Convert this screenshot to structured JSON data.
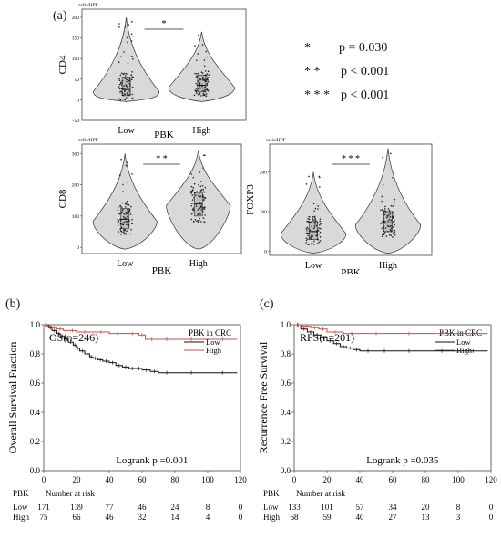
{
  "panel_a": {
    "letter": "(a)",
    "significance": [
      {
        "stars": "*",
        "text": "p = 0.030"
      },
      {
        "stars": "* *",
        "text": "p < 0.001"
      },
      {
        "stars": "* * *",
        "text": "p < 0.001"
      }
    ]
  },
  "panel_b": {
    "letter": "(b)"
  },
  "panel_c": {
    "letter": "(c)"
  },
  "chart_data": [
    {
      "type": "violin",
      "id": "cd4",
      "ylabel": "CD4",
      "unit_label": "cells/HPF",
      "xlabel": "PBK",
      "categories": [
        "Low",
        "High"
      ],
      "ylim": [
        -50,
        220
      ],
      "yticks": [
        "0",
        "50",
        "100",
        "150",
        "200"
      ],
      "tick_values": [
        0,
        50,
        100,
        150,
        200
      ],
      "extra_tick": {
        "label": "-50",
        "value": -50
      },
      "significance": "*",
      "box": [
        {
          "q1": 10,
          "median": 25,
          "q3": 55
        },
        {
          "q1": 20,
          "median": 35,
          "q3": 60
        }
      ],
      "max": [
        200,
        165
      ]
    },
    {
      "type": "violin",
      "id": "cd8",
      "ylabel": "CD8",
      "unit_label": "cells/HPF",
      "xlabel": "PBK",
      "categories": [
        "Low",
        "High"
      ],
      "ylim": [
        -20,
        330
      ],
      "yticks": [
        "0",
        "100",
        "200",
        "300"
      ],
      "tick_values": [
        0,
        100,
        200,
        300
      ],
      "significance": "* *",
      "box": [
        {
          "q1": 60,
          "median": 90,
          "q3": 125
        },
        {
          "q1": 100,
          "median": 140,
          "q3": 175
        }
      ],
      "max": [
        300,
        310
      ]
    },
    {
      "type": "violin",
      "id": "foxp3",
      "ylabel": "FOXP3",
      "unit_label": "cells/HPF",
      "xlabel": "PBK",
      "categories": [
        "Low",
        "High"
      ],
      "ylim": [
        -10,
        270
      ],
      "yticks": [
        "0",
        "100",
        "200"
      ],
      "tick_values": [
        0,
        100,
        200
      ],
      "significance": "* * *",
      "box": [
        {
          "q1": 30,
          "median": 50,
          "q3": 75
        },
        {
          "q1": 50,
          "median": 72,
          "q3": 100
        }
      ],
      "max": [
        200,
        260
      ]
    },
    {
      "type": "line",
      "id": "os",
      "title": "OS(n=246)",
      "ylabel": "Overall Survival Fraction",
      "legend_title": "PBK in CRC",
      "xlim": [
        0,
        120
      ],
      "ylim": [
        0,
        1.0
      ],
      "xticks": [
        "0",
        "20",
        "40",
        "60",
        "80",
        "100",
        "120"
      ],
      "yticks": [
        "0.0",
        "0.2",
        "0.4",
        "0.6",
        "0.8",
        "1.0"
      ],
      "series": [
        {
          "name": "Low",
          "color": "#111111",
          "x": [
            0,
            3,
            5,
            8,
            10,
            13,
            15,
            18,
            20,
            22,
            25,
            28,
            30,
            33,
            36,
            40,
            44,
            48,
            52,
            56,
            60,
            65,
            70,
            80,
            100,
            118
          ],
          "y": [
            1.0,
            0.98,
            0.96,
            0.94,
            0.92,
            0.9,
            0.88,
            0.86,
            0.84,
            0.82,
            0.8,
            0.78,
            0.77,
            0.76,
            0.75,
            0.74,
            0.72,
            0.71,
            0.7,
            0.7,
            0.69,
            0.68,
            0.67,
            0.67,
            0.67,
            0.67
          ]
        },
        {
          "name": "High",
          "color": "#c0504d",
          "x": [
            0,
            2,
            5,
            8,
            12,
            15,
            20,
            30,
            40,
            50,
            58,
            62,
            70,
            80,
            100,
            118
          ],
          "y": [
            1.0,
            0.99,
            0.98,
            0.97,
            0.96,
            0.96,
            0.95,
            0.95,
            0.94,
            0.94,
            0.93,
            0.9,
            0.9,
            0.9,
            0.9,
            0.9
          ]
        }
      ],
      "stat_text": "Logrank p =0.001",
      "risk_table": {
        "header_left": "PBK",
        "header_right": "Number at risk",
        "rows": [
          {
            "label": "Low",
            "values": [
              "171",
              "139",
              "77",
              "46",
              "24",
              "8",
              "0"
            ]
          },
          {
            "label": "High",
            "values": [
              "75",
              "66",
              "46",
              "32",
              "14",
              "4",
              "0"
            ]
          }
        ]
      }
    },
    {
      "type": "line",
      "id": "rfs",
      "title": "RFS(n=201)",
      "ylabel": "Recurrence Free Survival",
      "legend_title": "PBK in CRC",
      "xlim": [
        0,
        120
      ],
      "ylim": [
        0,
        1.0
      ],
      "xticks": [
        "0",
        "20",
        "40",
        "60",
        "80",
        "100",
        "120"
      ],
      "yticks": [
        "0.0",
        "0.2",
        "0.4",
        "0.6",
        "0.8",
        "1.0"
      ],
      "series": [
        {
          "name": "Low",
          "color": "#111111",
          "x": [
            0,
            4,
            8,
            12,
            16,
            20,
            24,
            28,
            32,
            36,
            40,
            50,
            60,
            80,
            100,
            118
          ],
          "y": [
            1.0,
            0.97,
            0.95,
            0.93,
            0.91,
            0.89,
            0.87,
            0.85,
            0.84,
            0.83,
            0.82,
            0.82,
            0.82,
            0.82,
            0.82,
            0.82
          ]
        },
        {
          "name": "High",
          "color": "#c0504d",
          "x": [
            0,
            5,
            10,
            15,
            20,
            30,
            40,
            60,
            80,
            100,
            118
          ],
          "y": [
            1.0,
            0.99,
            0.98,
            0.97,
            0.95,
            0.94,
            0.94,
            0.94,
            0.94,
            0.94,
            0.94
          ]
        }
      ],
      "stat_text": "Logrank p =0.035",
      "risk_table": {
        "header_left": "PBK",
        "header_right": "Number at risk",
        "rows": [
          {
            "label": "Low",
            "values": [
              "133",
              "101",
              "57",
              "34",
              "20",
              "8",
              "0"
            ]
          },
          {
            "label": "High",
            "values": [
              "68",
              "59",
              "40",
              "27",
              "13",
              "3",
              "0"
            ]
          }
        ]
      }
    }
  ]
}
